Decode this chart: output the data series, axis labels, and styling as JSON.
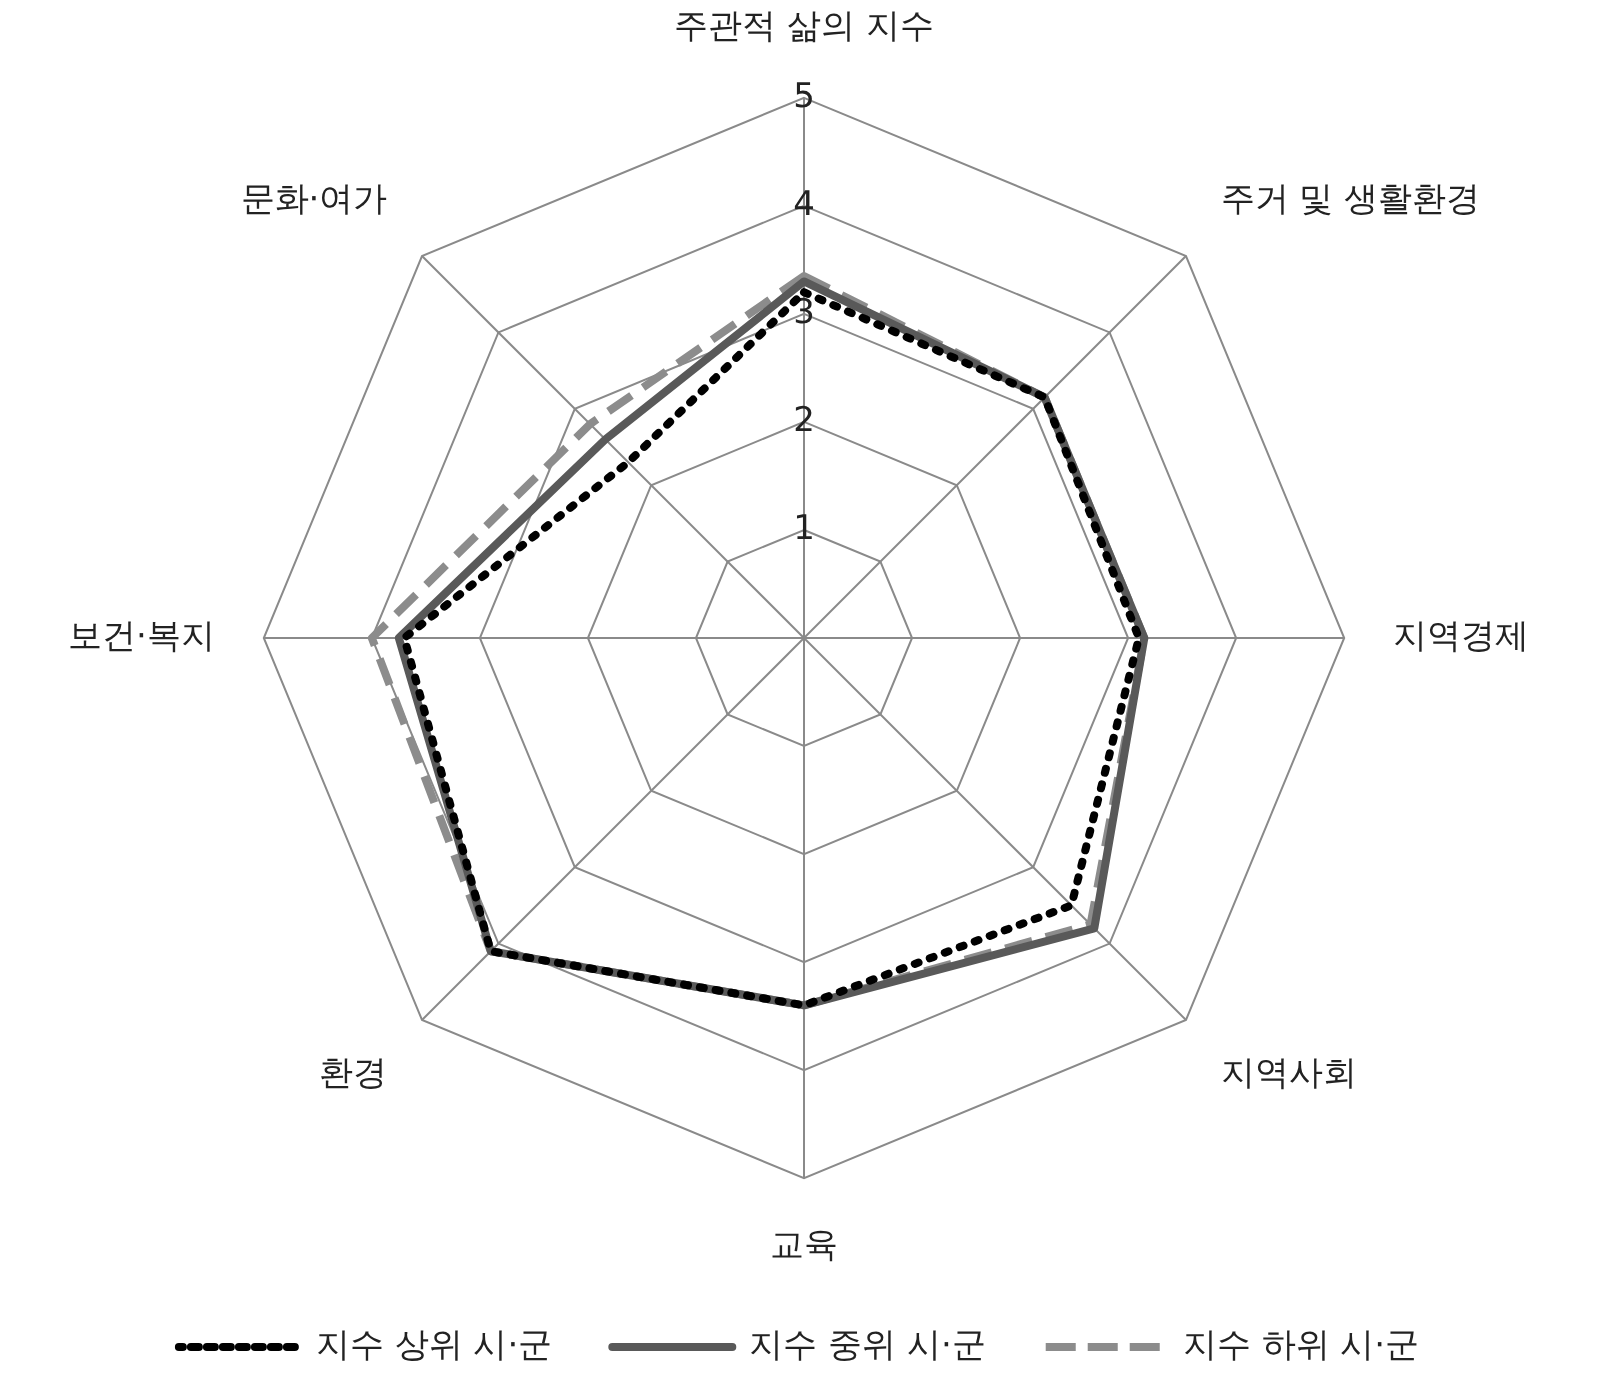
{
  "chart_data": {
    "type": "radar",
    "categories": [
      "주관적 삶의 지수",
      "주거 및 생활환경",
      "지역경제",
      "지역사회",
      "교육",
      "환경",
      "보건·복지",
      "문화·여가"
    ],
    "series": [
      {
        "name": "지수 상위 시·군",
        "color": "#000000",
        "line_style": "dotted",
        "values": [
          3.2,
          3.15,
          3.1,
          3.5,
          3.4,
          4.1,
          3.7,
          2.3
        ]
      },
      {
        "name": "지수 중위 시·군",
        "color": "#595959",
        "line_style": "solid",
        "values": [
          3.3,
          3.15,
          3.15,
          3.8,
          3.4,
          4.1,
          3.75,
          2.6
        ]
      },
      {
        "name": "지수 하위 시·군",
        "color": "#8c8c8c",
        "line_style": "dashed",
        "values": [
          3.35,
          3.15,
          3.15,
          3.75,
          3.4,
          4.1,
          4.0,
          2.8
        ]
      }
    ],
    "ylim": [
      0,
      5
    ],
    "yticks": [
      1,
      2,
      3,
      4,
      5
    ],
    "grid": true,
    "legend": "bottom",
    "marker": "none"
  }
}
